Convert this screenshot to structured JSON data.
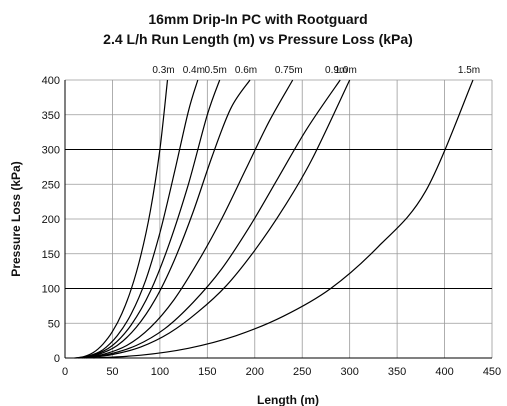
{
  "chart_data": {
    "type": "line",
    "title": "16mm Drip-In PC with Rootguard",
    "subtitle": "2.4 L/h Run Length (m) vs Pressure Loss (kPa)",
    "xlabel": "Length (m)",
    "ylabel": "Pressure Loss (kPa)",
    "xlim": [
      0,
      450
    ],
    "ylim": [
      0,
      400
    ],
    "x_ticks": [
      0,
      50,
      100,
      150,
      200,
      250,
      300,
      350,
      400,
      450
    ],
    "y_ticks": [
      0,
      50,
      100,
      150,
      200,
      250,
      300,
      350,
      400
    ],
    "grid": true,
    "line_color": "#000000",
    "series": [
      {
        "name": "0.3m",
        "x": [
          10,
          20,
          30,
          40,
          50,
          60,
          70,
          80,
          90,
          100,
          108
        ],
        "y": [
          0,
          2,
          8,
          20,
          38,
          64,
          100,
          148,
          212,
          300,
          400
        ]
      },
      {
        "name": "0.4m",
        "x": [
          12,
          25,
          40,
          55,
          70,
          85,
          100,
          115,
          130,
          140
        ],
        "y": [
          0,
          3,
          12,
          32,
          64,
          112,
          180,
          265,
          355,
          400
        ]
      },
      {
        "name": "0.5m",
        "x": [
          14,
          30,
          50,
          70,
          90,
          110,
          130,
          150,
          163
        ],
        "y": [
          0,
          4,
          18,
          48,
          96,
          165,
          250,
          350,
          400
        ]
      },
      {
        "name": "0.6m",
        "x": [
          15,
          35,
          55,
          75,
          95,
          115,
          135,
          155,
          175,
          195
        ],
        "y": [
          0,
          5,
          18,
          44,
          84,
          140,
          210,
          290,
          360,
          400
        ]
      },
      {
        "name": "0.75m",
        "x": [
          18,
          40,
          65,
          90,
          115,
          140,
          165,
          190,
          215,
          240
        ],
        "y": [
          0,
          5,
          18,
          44,
          84,
          138,
          200,
          270,
          340,
          400
        ]
      },
      {
        "name": "0.9m",
        "x": [
          20,
          45,
          75,
          105,
          135,
          165,
          195,
          225,
          255,
          290
        ],
        "y": [
          0,
          5,
          18,
          42,
          80,
          128,
          190,
          260,
          330,
          400
        ]
      },
      {
        "name": "1.0m",
        "x": [
          22,
          50,
          80,
          110,
          140,
          170,
          200,
          230,
          260,
          300
        ],
        "y": [
          0,
          5,
          16,
          36,
          66,
          104,
          155,
          215,
          285,
          400
        ]
      },
      {
        "name": "1.5m",
        "x": [
          30,
          80,
          130,
          180,
          230,
          280,
          330,
          380,
          430
        ],
        "y": [
          0,
          4,
          14,
          32,
          60,
          100,
          160,
          240,
          400
        ]
      }
    ]
  }
}
